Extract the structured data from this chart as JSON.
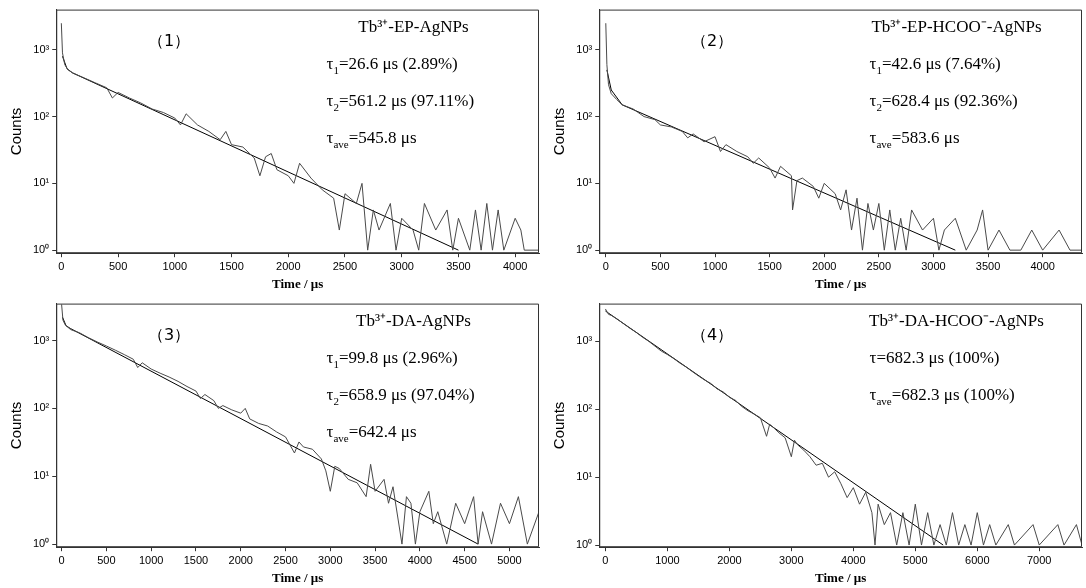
{
  "chart_data": [
    {
      "type": "line",
      "xlabel": "Time / μs",
      "ylabel": "Counts",
      "log": "y",
      "xlim": [
        -45,
        4210
      ],
      "xticks": [
        0,
        500,
        1000,
        1500,
        2000,
        2500,
        3000,
        3500,
        4000
      ],
      "ylim": [
        0.9,
        4000
      ],
      "yticks": [
        {
          "value": 1,
          "label": "10⁰"
        },
        {
          "value": 10,
          "label": "10¹"
        },
        {
          "value": 100,
          "label": "10²"
        },
        {
          "value": 1000,
          "label": "10³"
        }
      ],
      "annotations": [
        "（1）",
        "Tb³⁺-EP-AgNPs",
        "τ$_{1}$=26.6 μs (2.89%)",
        "τ$_{2}$=561.2 μs (97.11%)",
        "τ$_{ave}$=545.8 μs"
      ],
      "series": [
        {
          "color": "#4a4a4a",
          "x": [
            0,
            10,
            30,
            60,
            100,
            200,
            300,
            400,
            450,
            500,
            600,
            700,
            800,
            900,
            1000,
            1050,
            1100,
            1200,
            1300,
            1400,
            1450,
            1500,
            1600,
            1700,
            1750,
            1800,
            1850,
            1900,
            2000,
            2050,
            2100,
            2200,
            2300,
            2400,
            2450,
            2500,
            2600,
            2650,
            2700,
            2750,
            2800,
            2900,
            2950,
            3000,
            3100,
            3150,
            3200,
            3300,
            3400,
            3450,
            3500,
            3600,
            3650,
            3700,
            3750,
            3800,
            3850,
            3900,
            4000,
            4050,
            4080,
            4210
          ],
          "values": [
            2500,
            900,
            600,
            500,
            450,
            380,
            320,
            270,
            190,
            230,
            190,
            160,
            130,
            115,
            95,
            75,
            110,
            75,
            60,
            45,
            60,
            38,
            35,
            24,
            13,
            25,
            28,
            16,
            13,
            10,
            20,
            12,
            8,
            6,
            2,
            7,
            5,
            10,
            1,
            4,
            2,
            5,
            1,
            3,
            2,
            1,
            5,
            2,
            4,
            1,
            3,
            1,
            4,
            1,
            5,
            1,
            4,
            1,
            3,
            2,
            1,
            1
          ]
        },
        {
          "color": "#000000",
          "x": [
            10,
            50,
            100,
            3500
          ],
          "values": [
            800,
            520,
            450,
            1
          ]
        }
      ]
    },
    {
      "type": "line",
      "xlabel": "Time / μs",
      "ylabel": "Counts",
      "log": "y",
      "xlim": [
        -60,
        4360
      ],
      "xticks": [
        0,
        500,
        1000,
        1500,
        2000,
        2500,
        3000,
        3500,
        4000
      ],
      "ylim": [
        0.9,
        4000
      ],
      "yticks": [
        {
          "value": 1,
          "label": "10⁰"
        },
        {
          "value": 10,
          "label": "10¹"
        },
        {
          "value": 100,
          "label": "10²"
        },
        {
          "value": 1000,
          "label": "10³"
        }
      ],
      "annotations": [
        "（2）",
        "Tb³⁺-EP-HCOO⁻-AgNPs",
        "τ$_{1}$=42.6 μs (7.64%)",
        "τ$_{2}$=628.4 μs (92.36%)",
        "τ$_{ave}$=583.6 μs"
      ],
      "series": [
        {
          "color": "#4a4a4a",
          "x": [
            0,
            10,
            25,
            50,
            100,
            150,
            250,
            350,
            450,
            500,
            600,
            700,
            750,
            800,
            900,
            1000,
            1050,
            1100,
            1200,
            1300,
            1350,
            1400,
            1500,
            1550,
            1600,
            1700,
            1710,
            1750,
            1800,
            1900,
            1950,
            2000,
            2100,
            2150,
            2200,
            2250,
            2300,
            2350,
            2400,
            2450,
            2500,
            2550,
            2600,
            2650,
            2700,
            2750,
            2800,
            2900,
            3000,
            3050,
            3100,
            3200,
            3300,
            3400,
            3450,
            3500,
            3600,
            3700,
            3800,
            3900,
            4000,
            4150,
            4250,
            4360
          ],
          "values": [
            2500,
            600,
            300,
            220,
            180,
            150,
            130,
            100,
            90,
            75,
            70,
            60,
            48,
            55,
            42,
            50,
            30,
            38,
            30,
            25,
            20,
            24,
            17,
            12,
            18,
            13,
            4,
            11,
            12,
            9,
            6,
            10,
            7,
            4,
            8,
            2,
            6,
            1,
            5,
            2,
            5,
            1,
            4,
            1,
            3,
            1,
            4,
            2,
            3,
            1,
            2,
            3,
            1,
            2,
            4,
            1,
            2,
            1,
            1,
            2,
            1,
            2,
            1,
            1
          ]
        },
        {
          "color": "#000000",
          "x": [
            10,
            50,
            150,
            3200
          ],
          "values": [
            500,
            250,
            150,
            1
          ]
        }
      ]
    },
    {
      "type": "line",
      "xlabel": "Time / μs",
      "ylabel": "Counts",
      "log": "y",
      "xlim": [
        -60,
        5330
      ],
      "xticks": [
        0,
        500,
        1000,
        1500,
        2000,
        2500,
        3000,
        3500,
        4000,
        4500,
        5000
      ],
      "ylim": [
        0.9,
        3500
      ],
      "yticks": [
        {
          "value": 1,
          "label": "10⁰"
        },
        {
          "value": 10,
          "label": "10¹"
        },
        {
          "value": 100,
          "label": "10²"
        },
        {
          "value": 1000,
          "label": "10³"
        }
      ],
      "annotations": [
        "（3）",
        "Tb³⁺-DA-AgNPs",
        "τ$_{1}$=99.8 μs (2.96%)",
        "τ$_{2}$=658.9 μs (97.04%)",
        "τ$_{ave}$=642.4 μs"
      ],
      "series": [
        {
          "color": "#4a4a4a",
          "x": [
            0,
            15,
            40,
            100,
            200,
            300,
            400,
            500,
            600,
            700,
            800,
            850,
            900,
            1000,
            1100,
            1200,
            1300,
            1400,
            1500,
            1550,
            1600,
            1700,
            1750,
            1800,
            1900,
            2000,
            2050,
            2100,
            2200,
            2300,
            2400,
            2500,
            2600,
            2650,
            2700,
            2800,
            2900,
            2950,
            3000,
            3050,
            3100,
            3200,
            3300,
            3400,
            3450,
            3500,
            3600,
            3650,
            3700,
            3800,
            3850,
            3900,
            3950,
            4000,
            4100,
            4150,
            4200,
            4300,
            4400,
            4500,
            4600,
            4650,
            4700,
            4800,
            4900,
            5000,
            5100,
            5200,
            5330
          ],
          "values": [
            3400,
            2000,
            1700,
            1450,
            1300,
            1100,
            950,
            830,
            720,
            620,
            530,
            400,
            470,
            380,
            330,
            290,
            250,
            210,
            180,
            140,
            160,
            130,
            100,
            110,
            95,
            85,
            100,
            70,
            60,
            55,
            45,
            38,
            22,
            32,
            27,
            25,
            18,
            12,
            6,
            14,
            13,
            9,
            8,
            5,
            15,
            6,
            9,
            4,
            7,
            1,
            5,
            4,
            1,
            3,
            6,
            2,
            3,
            1,
            4,
            2,
            5,
            1,
            3,
            1,
            4,
            2,
            5,
            1,
            3
          ]
        },
        {
          "color": "#000000",
          "x": [
            10,
            50,
            100,
            4650
          ],
          "values": [
            2200,
            1650,
            1500,
            1
          ]
        }
      ]
    },
    {
      "type": "line",
      "xlabel": "Time / μs",
      "ylabel": "Counts",
      "log": "y",
      "xlim": [
        -100,
        7690
      ],
      "xticks": [
        0,
        1000,
        2000,
        3000,
        4000,
        5000,
        6000,
        7000
      ],
      "ylim": [
        0.93,
        3600
      ],
      "yticks": [
        {
          "value": 1,
          "label": "10⁰"
        },
        {
          "value": 10,
          "label": "10¹"
        },
        {
          "value": 100,
          "label": "10²"
        },
        {
          "value": 1000,
          "label": "10³"
        }
      ],
      "annotations": [
        "（4）",
        "Tb³⁺-DA-HCOO⁻-AgNPs",
        "τ=682.3 μs (100%)",
        "τ$_{ave}$=682.3 μs (100%)"
      ],
      "series": [
        {
          "color": "#4a4a4a",
          "x": [
            0,
            50,
            100,
            200,
            300,
            400,
            500,
            600,
            700,
            800,
            900,
            1000,
            1100,
            1200,
            1300,
            1400,
            1500,
            1600,
            1700,
            1800,
            1900,
            2000,
            2100,
            2200,
            2300,
            2400,
            2500,
            2600,
            2650,
            2700,
            2800,
            2900,
            3000,
            3050,
            3100,
            3200,
            3300,
            3400,
            3500,
            3600,
            3700,
            3800,
            3900,
            4000,
            4100,
            4200,
            4300,
            4350,
            4400,
            4500,
            4600,
            4700,
            4800,
            4900,
            5000,
            5100,
            5200,
            5300,
            5400,
            5500,
            5600,
            5700,
            5800,
            5900,
            6000,
            6100,
            6200,
            6300,
            6500,
            6600,
            6900,
            7000,
            7300,
            7400,
            7600,
            7690
          ],
          "values": [
            3000,
            2500,
            2400,
            2100,
            1800,
            1550,
            1350,
            1150,
            1000,
            850,
            720,
            640,
            560,
            480,
            420,
            360,
            310,
            270,
            240,
            200,
            180,
            150,
            135,
            110,
            95,
            85,
            75,
            40,
            60,
            55,
            45,
            38,
            20,
            35,
            30,
            25,
            20,
            15,
            16,
            10,
            12,
            8,
            5,
            7,
            4,
            6,
            3,
            1,
            4,
            2,
            3,
            1,
            3,
            1,
            4,
            1,
            3,
            1,
            2,
            1,
            3,
            1,
            2,
            1,
            3,
            1,
            2,
            1,
            2,
            1,
            2,
            1,
            2,
            1,
            2,
            1
          ]
        },
        {
          "color": "#000000",
          "x": [
            0,
            5450
          ],
          "values": [
            2800,
            1
          ]
        }
      ]
    }
  ]
}
